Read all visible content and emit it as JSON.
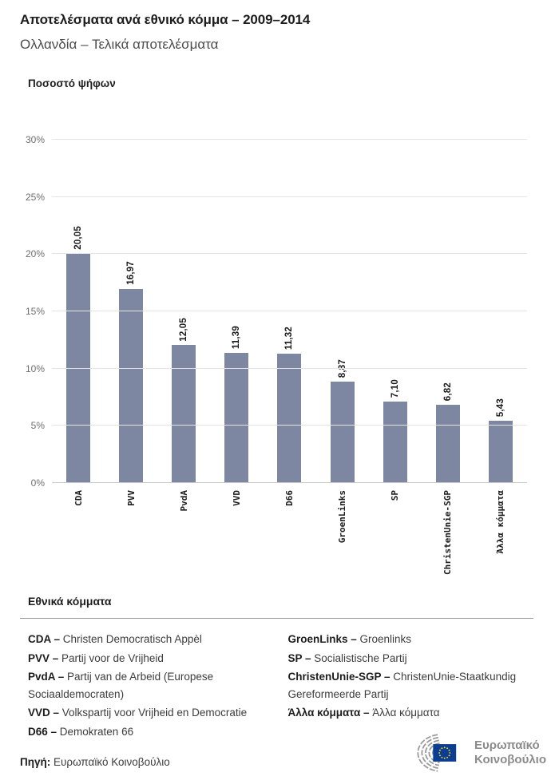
{
  "header": {
    "title": "Αποτελέσματα ανά εθνικό κόμμα – 2009–2014",
    "subtitle": "Ολλανδία – Τελικά αποτελέσματα"
  },
  "chart_data": {
    "type": "bar",
    "title": "Ποσοστό ψήφων",
    "categories": [
      "CDA",
      "PVV",
      "PvdA",
      "VVD",
      "D66",
      "GroenLinks",
      "SP",
      "ChristenUnie-SGP",
      "Άλλα κόμματα"
    ],
    "values": [
      20.05,
      16.97,
      12.05,
      11.39,
      11.32,
      8.87,
      7.1,
      6.82,
      5.43
    ],
    "value_labels": [
      "20,05",
      "16,97",
      "12,05",
      "11,39",
      "11,32",
      "8,87",
      "7,10",
      "6,82",
      "5,43"
    ],
    "ylim": [
      0,
      30
    ],
    "yticks": [
      0,
      5,
      10,
      15,
      20,
      25,
      30
    ],
    "ytick_labels": [
      "0%",
      "5%",
      "10%",
      "15%",
      "20%",
      "25%",
      "30%"
    ],
    "grid": "horizontal",
    "legend_position": "none",
    "bar_color": "#7d87a2"
  },
  "legend": {
    "heading": "Εθνικά κόμματα",
    "separator": "–",
    "columns": [
      [
        {
          "term": "CDA",
          "desc": "Christen Democratisch Appèl"
        },
        {
          "term": "PVV",
          "desc": "Partij voor de Vrijheid"
        },
        {
          "term": "PvdA",
          "desc": "Partij van de Arbeid (Europese Sociaaldemocraten)"
        },
        {
          "term": "VVD",
          "desc": "Volkspartij voor Vrijheid en Democratie"
        },
        {
          "term": "D66",
          "desc": "Demokraten 66"
        }
      ],
      [
        {
          "term": "GroenLinks",
          "desc": "Groenlinks"
        },
        {
          "term": "SP",
          "desc": "Socialistische Partij"
        },
        {
          "term": "ChristenUnie-SGP",
          "desc": "ChristenUnie-Staatkundig Gereformeerde Partij"
        },
        {
          "term": "Άλλα κόμματα",
          "desc": "Άλλα κόμματα"
        }
      ]
    ]
  },
  "footer": {
    "source_label": "Πηγή:",
    "source_value": "Ευρωπαϊκό Κοινοβούλιο",
    "logo_lines": [
      "Ευρωπαϊκό",
      "Κοινοβούλιο"
    ]
  },
  "colors": {
    "bar": "#7d87a2",
    "grid": "#e4e4e4",
    "baseline": "#c9c9c9",
    "flag_blue": "#0b3d91",
    "star_yellow": "#ffd617",
    "logo_gray": "#9a9a9a"
  }
}
